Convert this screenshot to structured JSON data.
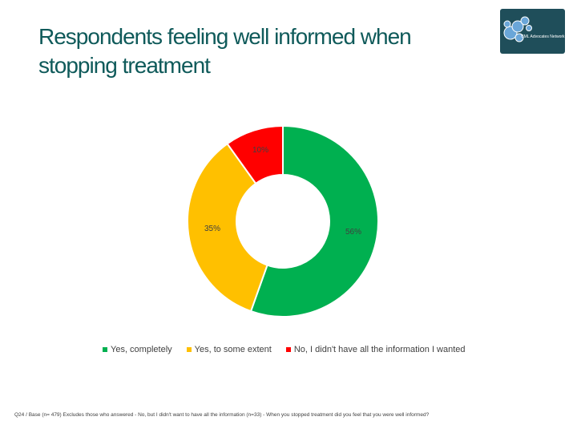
{
  "slide": {
    "title_lines": [
      "Respondents feeling well informed when",
      "stopping treatment"
    ],
    "footnote": "Q24 / Base (n= 479) Excludes those who answered - No, but I didn't want to have all the information (n=33) - When you stopped treatment did you feel that you were well informed?",
    "logo": {
      "text": "CML Advocates Network",
      "icon": "cell-cluster-icon"
    }
  },
  "chart_data": {
    "type": "pie",
    "variant": "donut",
    "categories": [
      "Yes, completely",
      "Yes, to some extent",
      "No, I didn't have all the information I wanted"
    ],
    "values": [
      56,
      35,
      10
    ],
    "labels": [
      "56%",
      "35%",
      "10%"
    ],
    "colors": [
      "#00b050",
      "#ffc000",
      "#ff0000"
    ],
    "start_angle_deg": 0,
    "direction": "clockwise",
    "legend_position": "bottom",
    "title": "",
    "colors_text": "#404040"
  }
}
